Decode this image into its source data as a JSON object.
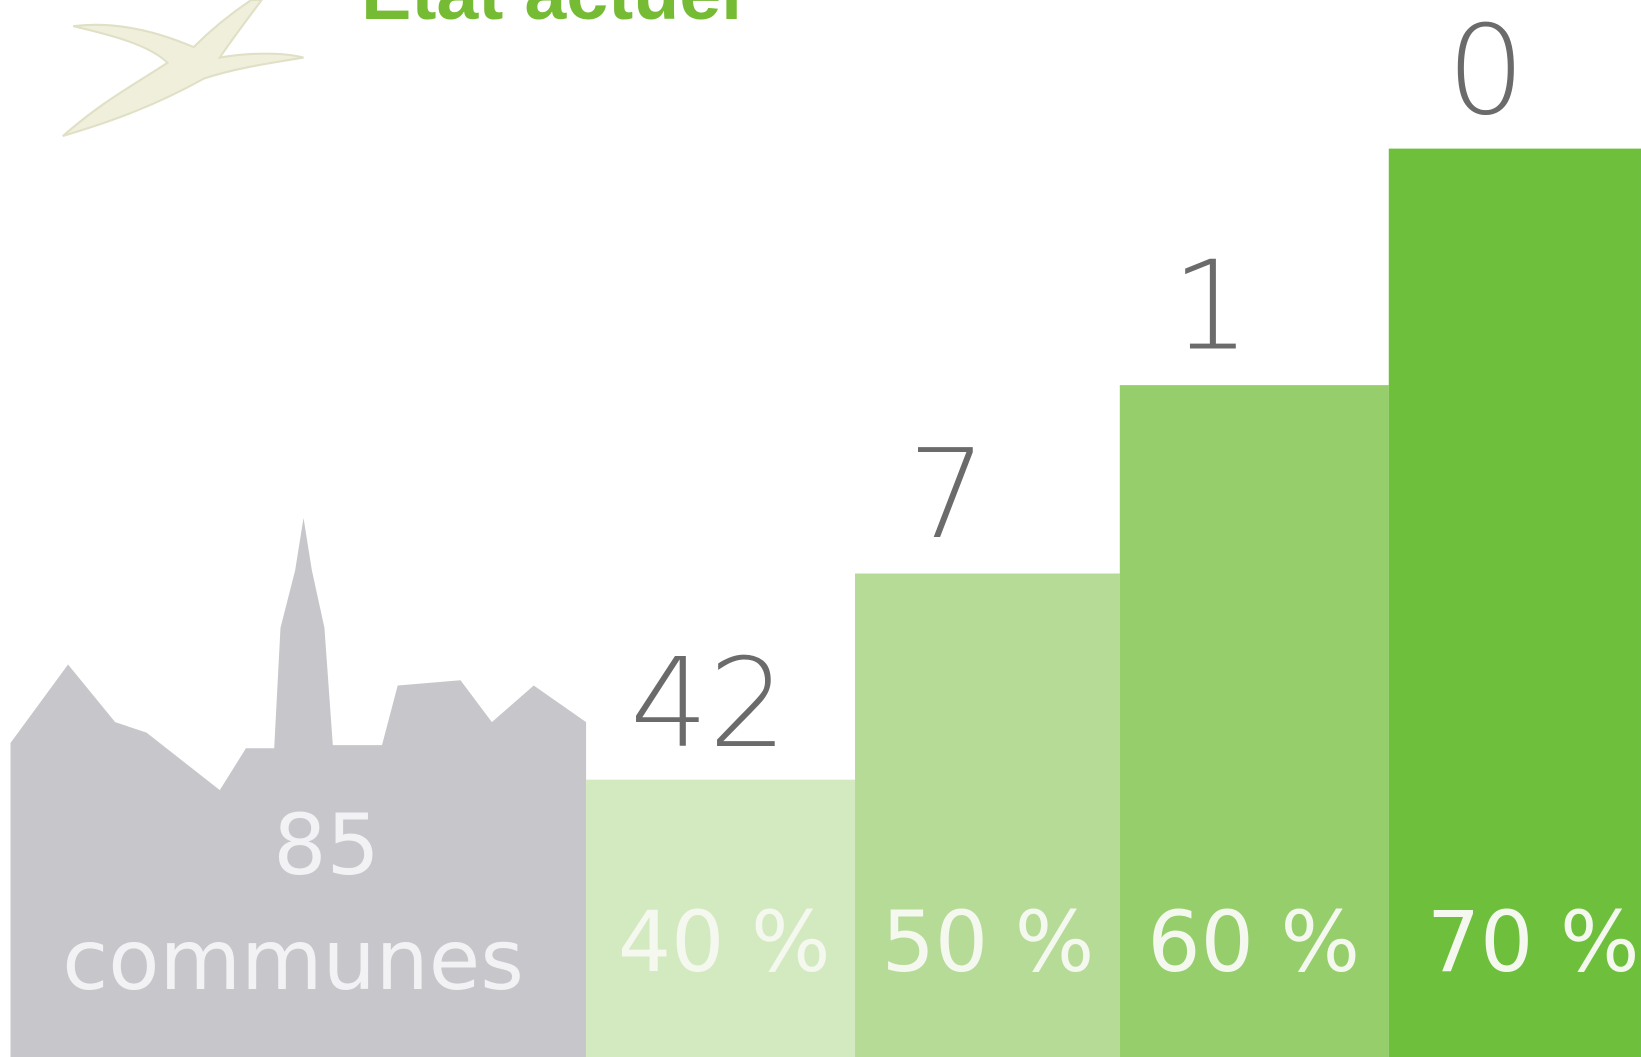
{
  "title": "Etat actuel",
  "town": {
    "count": "85",
    "label": "communes"
  },
  "steps": [
    {
      "threshold": "40 %",
      "count": "42"
    },
    {
      "threshold": "50 %",
      "count": "7"
    },
    {
      "threshold": "60 %",
      "count": "1"
    },
    {
      "threshold": "70 %",
      "count": "0"
    }
  ]
}
